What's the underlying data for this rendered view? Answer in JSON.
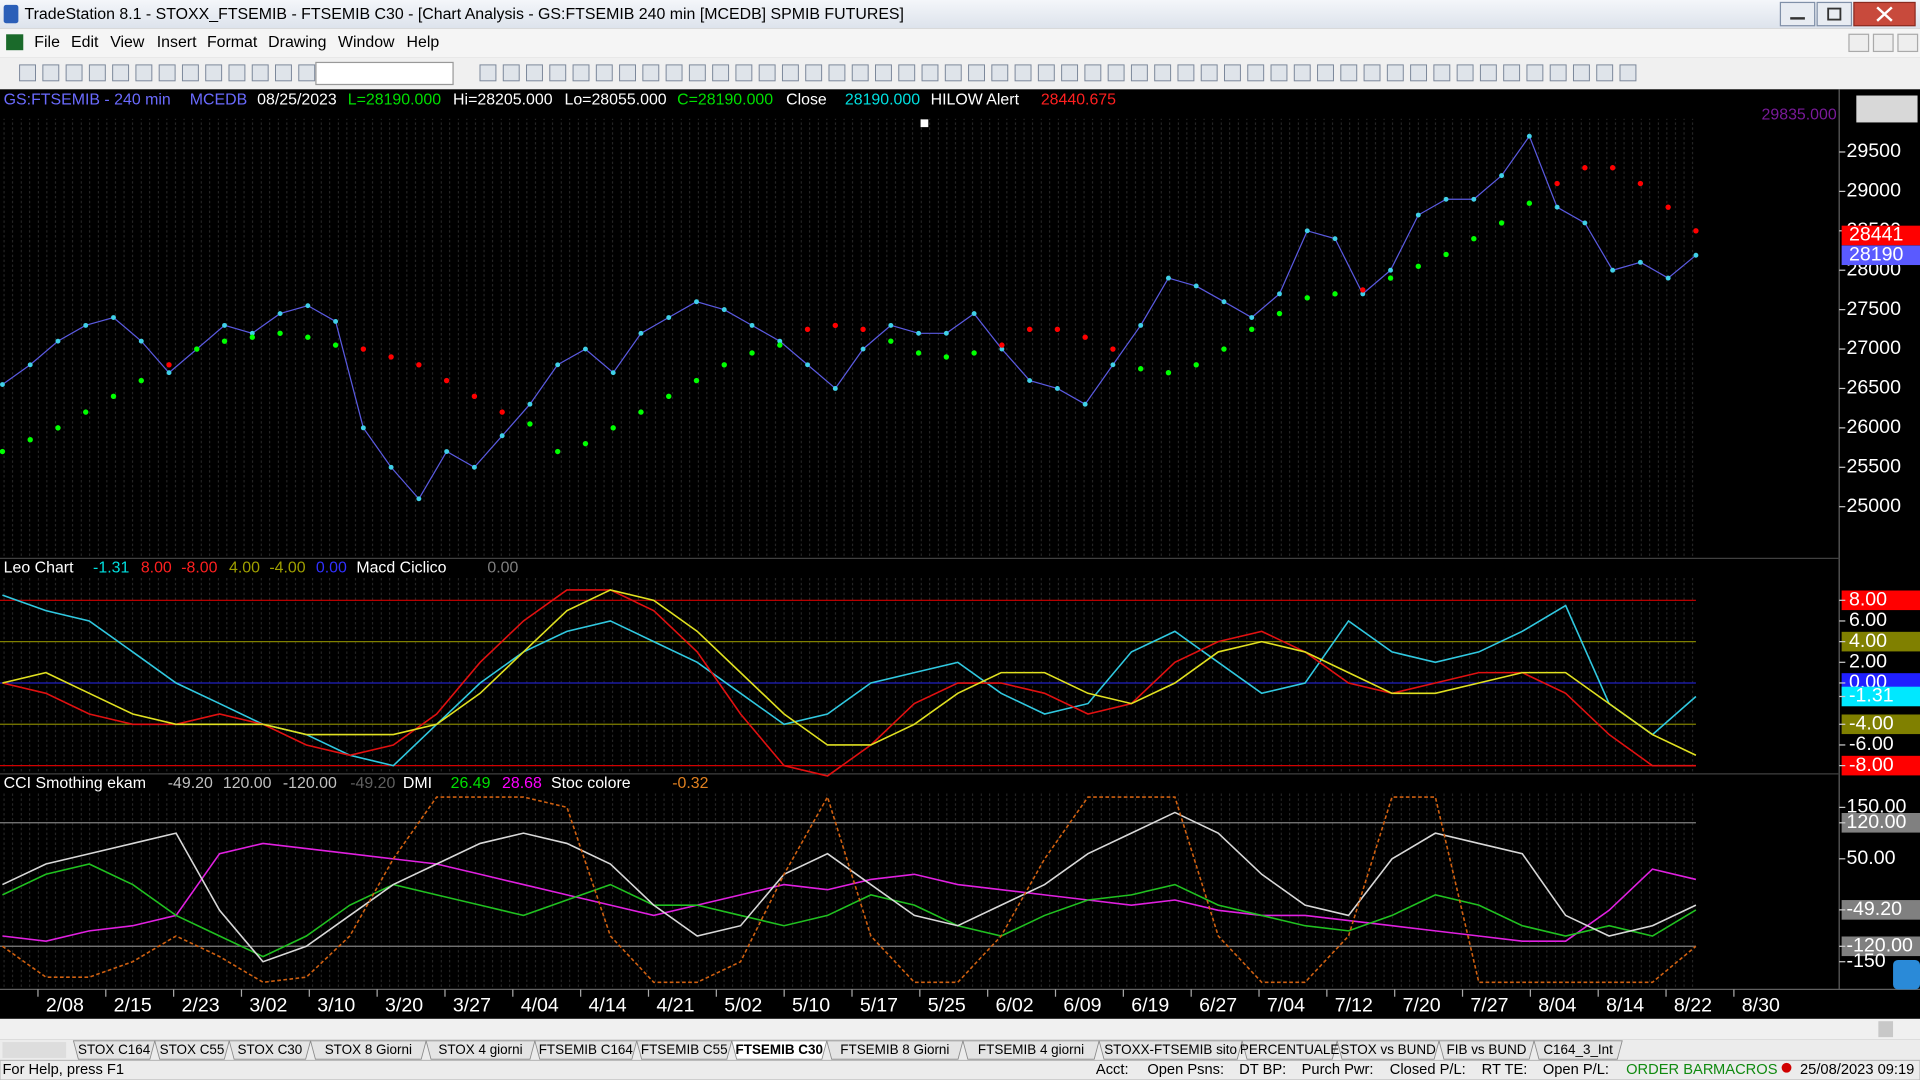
{
  "window": {
    "title": "TradeStation 8.1 - STOXX_FTSEMIB - FTSEMIB C30 - [Chart Analysis - GS:FTSEMIB  240 min  [MCEDB] SPMIB FUTURES]"
  },
  "menu": [
    "File",
    "Edit",
    "View",
    "Insert",
    "Format",
    "Drawing",
    "Window",
    "Help"
  ],
  "price_chart": {
    "header": [
      {
        "text": "GS:FTSEMIB - 240 min",
        "color": "#6b6bff"
      },
      {
        "text": "MCEDB",
        "color": "#6b6bff"
      },
      {
        "text": "08/25/2023",
        "color": "#ffffff"
      },
      {
        "text": "L=28190.000",
        "color": "#00e000"
      },
      {
        "text": "Hi=28205.000",
        "color": "#ffffff"
      },
      {
        "text": "Lo=28055.000",
        "color": "#ffffff"
      },
      {
        "text": "C=28190.000",
        "color": "#00e000"
      },
      {
        "text": "Close",
        "color": "#ffffff"
      },
      {
        "text": "28190.000",
        "color": "#00e0e0"
      },
      {
        "text": "HILOW Alert",
        "color": "#ffffff"
      },
      {
        "text": "28440.675",
        "color": "#ff2020"
      }
    ],
    "top_label": "29835.000",
    "ylim": [
      24360,
      30030
    ],
    "yticks": [
      25000,
      25500,
      26000,
      26500,
      27000,
      27500,
      28000,
      28500,
      29000,
      29500
    ],
    "markers": [
      {
        "value": 28441,
        "label": "28441",
        "color": "#ff0000"
      },
      {
        "value": 28190,
        "label": "28190",
        "color": "#5a5aff"
      }
    ],
    "close_color": "#40d0e8",
    "avg_up_color": "#00ff00",
    "avg_down_color": "#ff0000",
    "close": [
      26550,
      26800,
      27100,
      27300,
      27400,
      27100,
      26700,
      27000,
      27300,
      27200,
      27450,
      27550,
      27350,
      26000,
      25500,
      25100,
      25700,
      25500,
      25900,
      26300,
      26800,
      27000,
      26700,
      27200,
      27400,
      27600,
      27500,
      27300,
      27100,
      26800,
      26500,
      27000,
      27300,
      27200,
      27200,
      27450,
      27000,
      26600,
      26500,
      26300,
      26800,
      27300,
      27900,
      27800,
      27600,
      27400,
      27700,
      28500,
      28400,
      27700,
      28000,
      28700,
      28900,
      28900,
      29200,
      29700,
      28800,
      28600,
      28000,
      28100,
      27900,
      28190
    ],
    "average": [
      25700,
      25850,
      26000,
      26200,
      26400,
      26600,
      26800,
      27000,
      27100,
      27150,
      27200,
      27150,
      27050,
      27000,
      26900,
      26800,
      26600,
      26400,
      26200,
      26050,
      25700,
      25800,
      26000,
      26200,
      26400,
      26600,
      26800,
      26950,
      27050,
      27250,
      27300,
      27250,
      27100,
      26950,
      26900,
      26950,
      27050,
      27250,
      27250,
      27150,
      27000,
      26750,
      26700,
      26800,
      27000,
      27250,
      27450,
      27650,
      27700,
      27750,
      27900,
      28050,
      28200,
      28400,
      28600,
      28850,
      29100,
      29300,
      29300,
      29100,
      28800,
      28500
    ]
  },
  "leo_chart": {
    "header": [
      {
        "text": "Leo Chart",
        "color": "#ffffff"
      },
      {
        "text": "-1.31",
        "color": "#00e0e0"
      },
      {
        "text": "8.00",
        "color": "#ff2020"
      },
      {
        "text": "-8.00",
        "color": "#ff2020"
      },
      {
        "text": "4.00",
        "color": "#a0a000"
      },
      {
        "text": "-4.00",
        "color": "#a0a000"
      },
      {
        "text": "0.00",
        "color": "#3030ff"
      },
      {
        "text": "Macd Ciclico",
        "color": "#ffffff"
      },
      {
        "text": "0.00",
        "color": "#808080"
      }
    ],
    "ylim": [
      -8.8,
      10.4
    ],
    "yticks": [
      {
        "value": 8,
        "label": "8.00",
        "color": "#ff0000"
      },
      {
        "value": 6,
        "label": "6.00"
      },
      {
        "value": 4,
        "label": "4.00",
        "color": "#808000"
      },
      {
        "value": 2,
        "label": "2.00"
      },
      {
        "value": 0,
        "label": "0.00",
        "color": "#2020ff"
      },
      {
        "value": -1.31,
        "label": "-1.31",
        "color": "#00e8ff"
      },
      {
        "value": -4,
        "label": "-4.00",
        "color": "#808000"
      },
      {
        "value": -6,
        "label": "-6.00"
      },
      {
        "value": -8,
        "label": "-8.00",
        "color": "#ff0000"
      }
    ],
    "levels": [
      {
        "value": 8,
        "color": "#d00000"
      },
      {
        "value": 4,
        "color": "#808000"
      },
      {
        "value": 0,
        "color": "#2020c0"
      },
      {
        "value": -4,
        "color": "#808000"
      },
      {
        "value": -8,
        "color": "#d00000"
      }
    ],
    "series": [
      {
        "color": "#30c8e0",
        "values": [
          8.5,
          7,
          6,
          3,
          0,
          -2,
          -4,
          -5,
          -7,
          -8,
          -4,
          0,
          3,
          5,
          6,
          4,
          2,
          -1,
          -4,
          -3,
          0,
          1,
          2,
          -1,
          -3,
          -2,
          3,
          5,
          2,
          -1,
          0,
          6,
          3,
          2,
          3,
          5,
          7.5,
          -2,
          -5,
          -1.31
        ]
      },
      {
        "color": "#e01010",
        "values": [
          0,
          -1,
          -3,
          -4,
          -4,
          -3,
          -4,
          -6,
          -7,
          -6,
          -3,
          2,
          6,
          9,
          9,
          7,
          3,
          -3,
          -8,
          -9,
          -6,
          -2,
          0,
          0,
          -1,
          -3,
          -2,
          2,
          4,
          5,
          3,
          0,
          -1,
          0,
          1,
          1,
          -1,
          -5,
          -8,
          -8
        ]
      },
      {
        "color": "#e0e020",
        "values": [
          0,
          1,
          -1,
          -3,
          -4,
          -4,
          -4,
          -5,
          -5,
          -5,
          -4,
          -1,
          3,
          7,
          9,
          8,
          5,
          1,
          -3,
          -6,
          -6,
          -4,
          -1,
          1,
          1,
          -1,
          -2,
          0,
          3,
          4,
          3,
          1,
          -1,
          -1,
          0,
          1,
          1,
          -2,
          -5,
          -7
        ]
      }
    ]
  },
  "cci_chart": {
    "header": [
      {
        "text": "CCI Smothing ekam",
        "color": "#ffffff"
      },
      {
        "text": "-49.20",
        "color": "#c0c0c0"
      },
      {
        "text": "120.00",
        "color": "#c0c0c0"
      },
      {
        "text": "-120.00",
        "color": "#c0c0c0"
      },
      {
        "text": "-49.20",
        "color": "#606060"
      },
      {
        "text": "DMI",
        "color": "#ffffff"
      },
      {
        "text": "26.49",
        "color": "#00e000"
      },
      {
        "text": "28.68",
        "color": "#ff00ff"
      },
      {
        "text": "Stoc colore",
        "color": "#ffffff"
      },
      {
        "text": "-0.32",
        "color": "#e08020"
      }
    ],
    "ylim": [
      -199,
      177
    ],
    "yticks": [
      {
        "value": 150,
        "label": "150.00"
      },
      {
        "value": 120,
        "label": "120.00",
        "color": "#808080"
      },
      {
        "value": 50,
        "label": "50.00"
      },
      {
        "value": -49.2,
        "label": "-49.20",
        "color": "#808080"
      },
      {
        "value": -120,
        "label": "-120.00",
        "color": "#808080"
      },
      {
        "value": -150,
        "label": "-150"
      }
    ],
    "levels": [
      {
        "value": 120,
        "color": "#808080"
      },
      {
        "value": -120,
        "color": "#808080"
      }
    ],
    "series": [
      {
        "color": "#e020e0",
        "values": [
          -100,
          -110,
          -90,
          -80,
          -60,
          60,
          80,
          70,
          60,
          50,
          40,
          20,
          0,
          -20,
          -40,
          -60,
          -40,
          -20,
          0,
          -10,
          10,
          20,
          0,
          -10,
          -20,
          -30,
          -40,
          -30,
          -50,
          -60,
          -60,
          -70,
          -80,
          -90,
          -100,
          -110,
          -110,
          -50,
          30,
          10
        ]
      },
      {
        "color": "#20c020",
        "values": [
          -20,
          20,
          40,
          0,
          -60,
          -100,
          -140,
          -100,
          -40,
          0,
          -20,
          -40,
          -60,
          -30,
          0,
          -40,
          -40,
          -60,
          -80,
          -60,
          -20,
          -40,
          -80,
          -100,
          -60,
          -30,
          -20,
          0,
          -40,
          -60,
          -80,
          -90,
          -60,
          -20,
          -40,
          -80,
          -100,
          -80,
          -100,
          -49.2
        ]
      },
      {
        "color": "#d8d8d8",
        "values": [
          0,
          40,
          60,
          80,
          100,
          -50,
          -150,
          -120,
          -60,
          0,
          40,
          80,
          100,
          80,
          40,
          -40,
          -100,
          -80,
          20,
          60,
          0,
          -60,
          -80,
          -40,
          0,
          60,
          100,
          140,
          100,
          20,
          -40,
          -60,
          50,
          100,
          80,
          60,
          -60,
          -100,
          -80,
          -40
        ]
      },
      {
        "color": "#d06010",
        "dashed": true,
        "values": [
          -120,
          -180,
          -180,
          -150,
          -100,
          -140,
          -190,
          -180,
          -100,
          50,
          170,
          170,
          170,
          150,
          -100,
          -190,
          -190,
          -150,
          20,
          170,
          -100,
          -190,
          -190,
          -100,
          50,
          170,
          170,
          170,
          -100,
          -190,
          -190,
          -100,
          170,
          170,
          -190,
          -190,
          -190,
          -190,
          -190,
          -120
        ]
      }
    ]
  },
  "dates": [
    "2/08",
    "2/15",
    "2/23",
    "3/02",
    "3/10",
    "3/20",
    "3/27",
    "4/04",
    "4/14",
    "4/21",
    "5/02",
    "5/10",
    "5/17",
    "5/25",
    "6/02",
    "6/09",
    "6/19",
    "6/27",
    "7/04",
    "7/12",
    "7/20",
    "7/27",
    "8/04",
    "8/14",
    "8/22",
    "8/30"
  ],
  "tabs": [
    "STOX C164",
    "STOX C55",
    "STOX  C30",
    "STOX  8 Giorni",
    "STOX 4 giorni",
    "FTSEMIB C164",
    "FTSEMIB C55",
    "FTSEMIB C30",
    "FTSEMIB  8 Giorni",
    "FTSEMIB  4 giorni",
    "STOXX-FTSEMIB sito",
    "PERCENTUALE",
    "STOX vs BUND",
    "FIB vs BUND",
    "C164_3_Int"
  ],
  "active_tab": 7,
  "status_bar": {
    "help": "For Help, press F1",
    "fields": [
      "Acct:",
      "Open Psns:",
      "DT BP:",
      "Purch Pwr:",
      "Closed P/L:",
      "RT TE:",
      "Open P/L:"
    ],
    "order_bar": "ORDER BAR",
    "macros": "MACROS",
    "datetime": "25/08/2023 09:19"
  }
}
